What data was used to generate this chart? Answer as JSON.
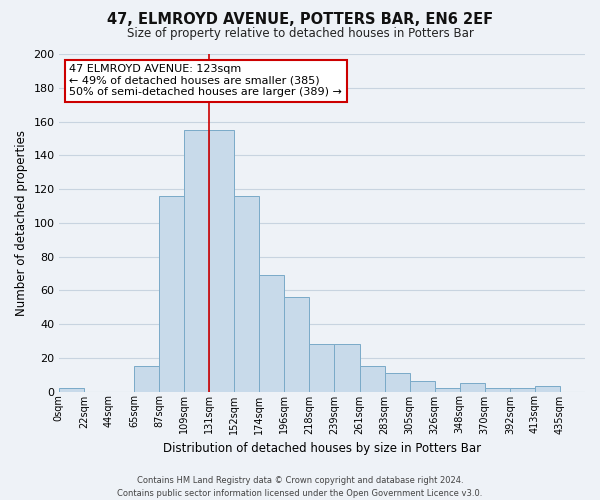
{
  "title": "47, ELMROYD AVENUE, POTTERS BAR, EN6 2EF",
  "subtitle": "Size of property relative to detached houses in Potters Bar",
  "xlabel": "Distribution of detached houses by size in Potters Bar",
  "ylabel": "Number of detached properties",
  "bin_labels": [
    "0sqm",
    "22sqm",
    "44sqm",
    "65sqm",
    "87sqm",
    "109sqm",
    "131sqm",
    "152sqm",
    "174sqm",
    "196sqm",
    "218sqm",
    "239sqm",
    "261sqm",
    "283sqm",
    "305sqm",
    "326sqm",
    "348sqm",
    "370sqm",
    "392sqm",
    "413sqm",
    "435sqm"
  ],
  "bar_values": [
    2,
    0,
    0,
    15,
    116,
    155,
    155,
    116,
    69,
    56,
    28,
    28,
    15,
    11,
    6,
    2,
    5,
    2,
    2,
    3,
    0
  ],
  "bar_color": "#c8daea",
  "bar_edge_color": "#7aaac8",
  "red_line_index": 6,
  "highlight_color": "#cc0000",
  "ylim": [
    0,
    200
  ],
  "yticks": [
    0,
    20,
    40,
    60,
    80,
    100,
    120,
    140,
    160,
    180,
    200
  ],
  "annotation_title": "47 ELMROYD AVENUE: 123sqm",
  "annotation_line1": "← 49% of detached houses are smaller (385)",
  "annotation_line2": "50% of semi-detached houses are larger (389) →",
  "annotation_box_color": "#ffffff",
  "annotation_box_edge": "#cc0000",
  "footer_line1": "Contains HM Land Registry data © Crown copyright and database right 2024.",
  "footer_line2": "Contains public sector information licensed under the Open Government Licence v3.0.",
  "background_color": "#eef2f7",
  "grid_color": "#c8d4e0"
}
